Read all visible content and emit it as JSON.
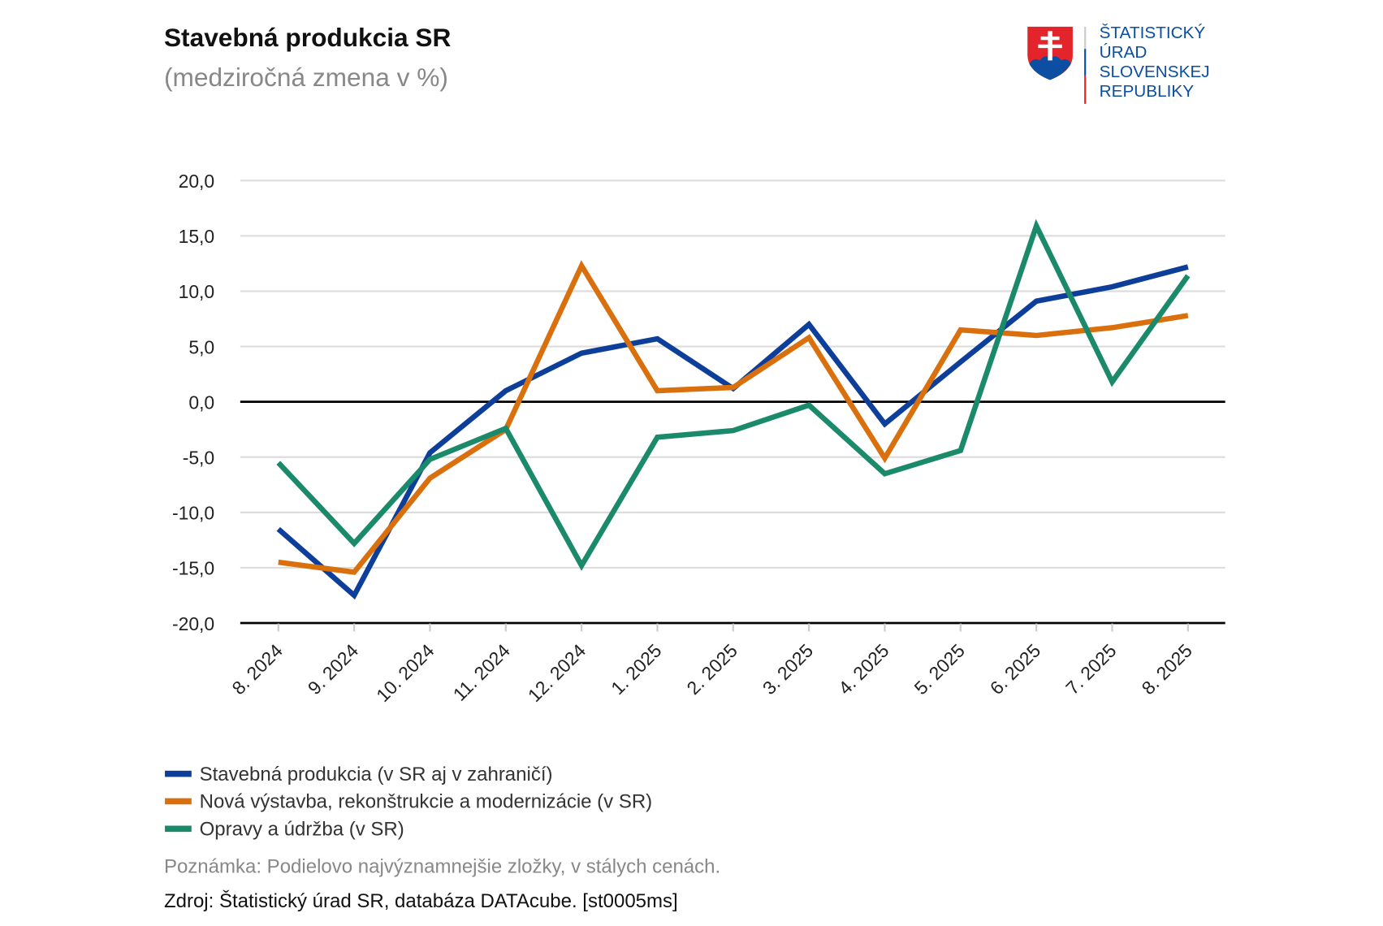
{
  "logo": {
    "lines": [
      "ŠTATISTICKÝ",
      "ÚRAD",
      "SLOVENSKEJ",
      "REPUBLIKY"
    ]
  },
  "note": "Poznámka: Podielovo najvýznamnejšie zložky, v stálych cenách.",
  "source": "Zdroj: Štatistický úrad SR, databáza DATAcube. [st0005ms]",
  "chart_data": {
    "type": "line",
    "title": "Stavebná produkcia SR",
    "subtitle": "(medziročná zmena v %)",
    "xlabel": "",
    "ylabel": "",
    "ylim": [
      -20,
      20
    ],
    "yticks": [
      20,
      15,
      10,
      5,
      0,
      -5,
      -10,
      -15,
      -20
    ],
    "ytick_labels": [
      "20,0",
      "15,0",
      "10,0",
      "5,0",
      "0,0",
      "-5,0",
      "-10,0",
      "-15,0",
      "-20,0"
    ],
    "grid": true,
    "legend_position": "bottom-left",
    "categories": [
      "8. 2024",
      "9. 2024",
      "10. 2024",
      "11. 2024",
      "12. 2024",
      "1. 2025",
      "2. 2025",
      "3. 2025",
      "4. 2025",
      "5. 2025",
      "6. 2025",
      "7. 2025",
      "8. 2025"
    ],
    "series": [
      {
        "name": "Stavebná produkcia (v SR aj v zahraničí)",
        "color": "#0d3f9a",
        "values": [
          -11.5,
          -17.5,
          -4.6,
          1.0,
          4.4,
          5.7,
          1.2,
          7.0,
          -2.0,
          3.6,
          9.1,
          10.4,
          12.2
        ]
      },
      {
        "name": "Nová výstavba, rekonštrukcie a modernizácie (v SR)",
        "color": "#d9700d",
        "values": [
          -14.5,
          -15.4,
          -6.9,
          -2.5,
          12.3,
          1.0,
          1.3,
          5.8,
          -5.1,
          6.5,
          6.0,
          6.7,
          7.8
        ]
      },
      {
        "name": "Opravy a údržba (v SR)",
        "color": "#1b8a6b",
        "values": [
          -5.5,
          -12.8,
          -5.2,
          -2.4,
          -14.8,
          -3.2,
          -2.6,
          -0.3,
          -6.5,
          -4.4,
          15.9,
          1.8,
          11.4
        ]
      }
    ]
  }
}
